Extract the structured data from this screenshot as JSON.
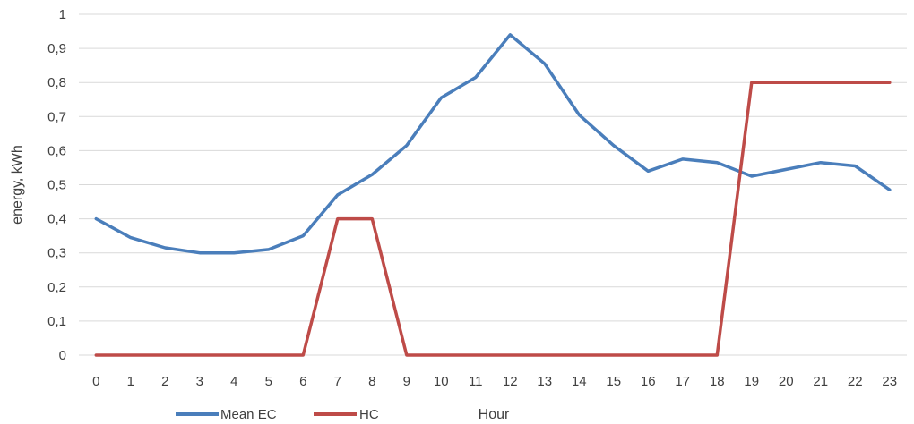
{
  "chart_data": {
    "type": "line",
    "x": [
      0,
      1,
      2,
      3,
      4,
      5,
      6,
      7,
      8,
      9,
      10,
      11,
      12,
      13,
      14,
      15,
      16,
      17,
      18,
      19,
      20,
      21,
      22,
      23
    ],
    "categories": [
      "0",
      "1",
      "2",
      "3",
      "4",
      "5",
      "6",
      "7",
      "8",
      "9",
      "10",
      "11",
      "12",
      "13",
      "14",
      "15",
      "16",
      "17",
      "18",
      "19",
      "20",
      "21",
      "22",
      "23"
    ],
    "series": [
      {
        "name": "Mean EC",
        "color": "#4A7EBB",
        "values": [
          0.4,
          0.345,
          0.315,
          0.3,
          0.3,
          0.31,
          0.35,
          0.47,
          0.53,
          0.615,
          0.755,
          0.815,
          0.94,
          0.855,
          0.705,
          0.615,
          0.54,
          0.575,
          0.565,
          0.525,
          0.545,
          0.565,
          0.555,
          0.485
        ]
      },
      {
        "name": "HC",
        "color": "#BE4B48",
        "values": [
          0,
          0,
          0,
          0,
          0,
          0,
          0,
          0.4,
          0.4,
          0,
          0,
          0,
          0,
          0,
          0,
          0,
          0,
          0,
          0,
          0.8,
          0.8,
          0.8,
          0.8,
          0.8
        ]
      }
    ],
    "xlabel": "Hour",
    "ylabel": "energy, kWh",
    "ylim": [
      0,
      1
    ],
    "yticks": [
      "0",
      "0,1",
      "0,2",
      "0,3",
      "0,4",
      "0,5",
      "0,6",
      "0,7",
      "0,8",
      "0,9",
      "1"
    ],
    "grid": true,
    "legend_position": "bottom-left"
  }
}
